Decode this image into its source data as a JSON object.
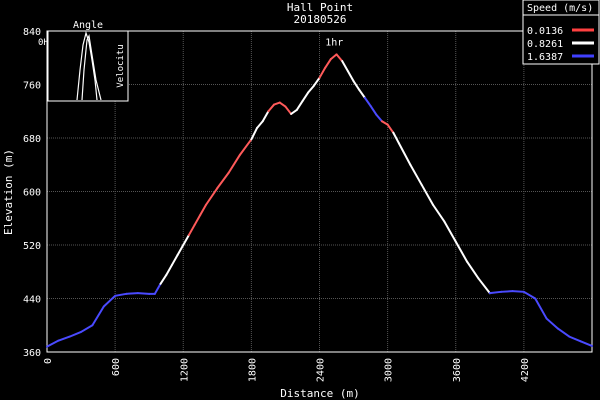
{
  "chart_data": {
    "type": "line",
    "title": "Hall Point",
    "subtitle": "20180526",
    "xlabel": "Distance (m)",
    "ylabel": "Elevation (m)",
    "xlim": [
      0,
      4800
    ],
    "ylim": [
      360,
      840
    ],
    "x_ticks": [
      "0",
      "600",
      "1200",
      "1800",
      "2400",
      "3000",
      "3600",
      "4200"
    ],
    "y_ticks": [
      "360",
      "440",
      "520",
      "600",
      "680",
      "760",
      "840"
    ],
    "grid": true,
    "legend": {
      "title": "Speed (m/s)",
      "placement": "top-right",
      "entries": [
        {
          "label": "0.0136",
          "color": "#ff4040"
        },
        {
          "label": "0.8261",
          "color": "#ffffff"
        },
        {
          "label": "1.6387",
          "color": "#4040ff"
        }
      ]
    },
    "annotations": [
      {
        "text": "1hr",
        "x": 2530,
        "y": 812
      }
    ],
    "inset": {
      "title": "Angle",
      "left_label": "0H",
      "right_label": "Velocitu"
    },
    "profile": [
      [
        0,
        368,
        "blue"
      ],
      [
        100,
        377,
        "blue"
      ],
      [
        200,
        383,
        "blue"
      ],
      [
        300,
        390,
        "blue"
      ],
      [
        400,
        400,
        "blue"
      ],
      [
        500,
        428,
        "blue"
      ],
      [
        600,
        444,
        "blue"
      ],
      [
        700,
        447,
        "blue"
      ],
      [
        800,
        448,
        "blue"
      ],
      [
        900,
        447,
        "blue"
      ],
      [
        950,
        447,
        "blue"
      ],
      [
        1000,
        462,
        "blue"
      ],
      [
        1050,
        475,
        "white"
      ],
      [
        1100,
        490,
        "white"
      ],
      [
        1150,
        505,
        "white"
      ],
      [
        1200,
        520,
        "white"
      ],
      [
        1250,
        535,
        "white"
      ],
      [
        1300,
        550,
        "red"
      ],
      [
        1350,
        565,
        "red"
      ],
      [
        1400,
        580,
        "red"
      ],
      [
        1500,
        605,
        "red"
      ],
      [
        1600,
        628,
        "red"
      ],
      [
        1700,
        655,
        "red"
      ],
      [
        1800,
        678,
        "red"
      ],
      [
        1850,
        695,
        "white"
      ],
      [
        1900,
        705,
        "white"
      ],
      [
        1950,
        720,
        "white"
      ],
      [
        2000,
        730,
        "red"
      ],
      [
        2050,
        733,
        "red"
      ],
      [
        2100,
        727,
        "red"
      ],
      [
        2150,
        716,
        "red"
      ],
      [
        2200,
        722,
        "white"
      ],
      [
        2250,
        735,
        "white"
      ],
      [
        2300,
        748,
        "white"
      ],
      [
        2350,
        758,
        "white"
      ],
      [
        2400,
        770,
        "white"
      ],
      [
        2450,
        785,
        "red"
      ],
      [
        2500,
        798,
        "red"
      ],
      [
        2550,
        805,
        "red"
      ],
      [
        2600,
        795,
        "red"
      ],
      [
        2650,
        780,
        "white"
      ],
      [
        2700,
        765,
        "white"
      ],
      [
        2750,
        752,
        "white"
      ],
      [
        2800,
        740,
        "white"
      ],
      [
        2850,
        728,
        "blue"
      ],
      [
        2900,
        715,
        "blue"
      ],
      [
        2950,
        705,
        "blue"
      ],
      [
        3000,
        700,
        "red"
      ],
      [
        3050,
        688,
        "red"
      ],
      [
        3100,
        672,
        "white"
      ],
      [
        3200,
        640,
        "white"
      ],
      [
        3300,
        610,
        "white"
      ],
      [
        3400,
        580,
        "white"
      ],
      [
        3500,
        555,
        "white"
      ],
      [
        3600,
        525,
        "white"
      ],
      [
        3700,
        495,
        "white"
      ],
      [
        3800,
        470,
        "white"
      ],
      [
        3900,
        448,
        "white"
      ],
      [
        4000,
        450,
        "blue"
      ],
      [
        4100,
        451,
        "blue"
      ],
      [
        4200,
        450,
        "blue"
      ],
      [
        4300,
        440,
        "blue"
      ],
      [
        4400,
        410,
        "blue"
      ],
      [
        4500,
        395,
        "blue"
      ],
      [
        4600,
        383,
        "blue"
      ],
      [
        4700,
        376,
        "blue"
      ],
      [
        4800,
        369,
        "blue"
      ]
    ]
  }
}
